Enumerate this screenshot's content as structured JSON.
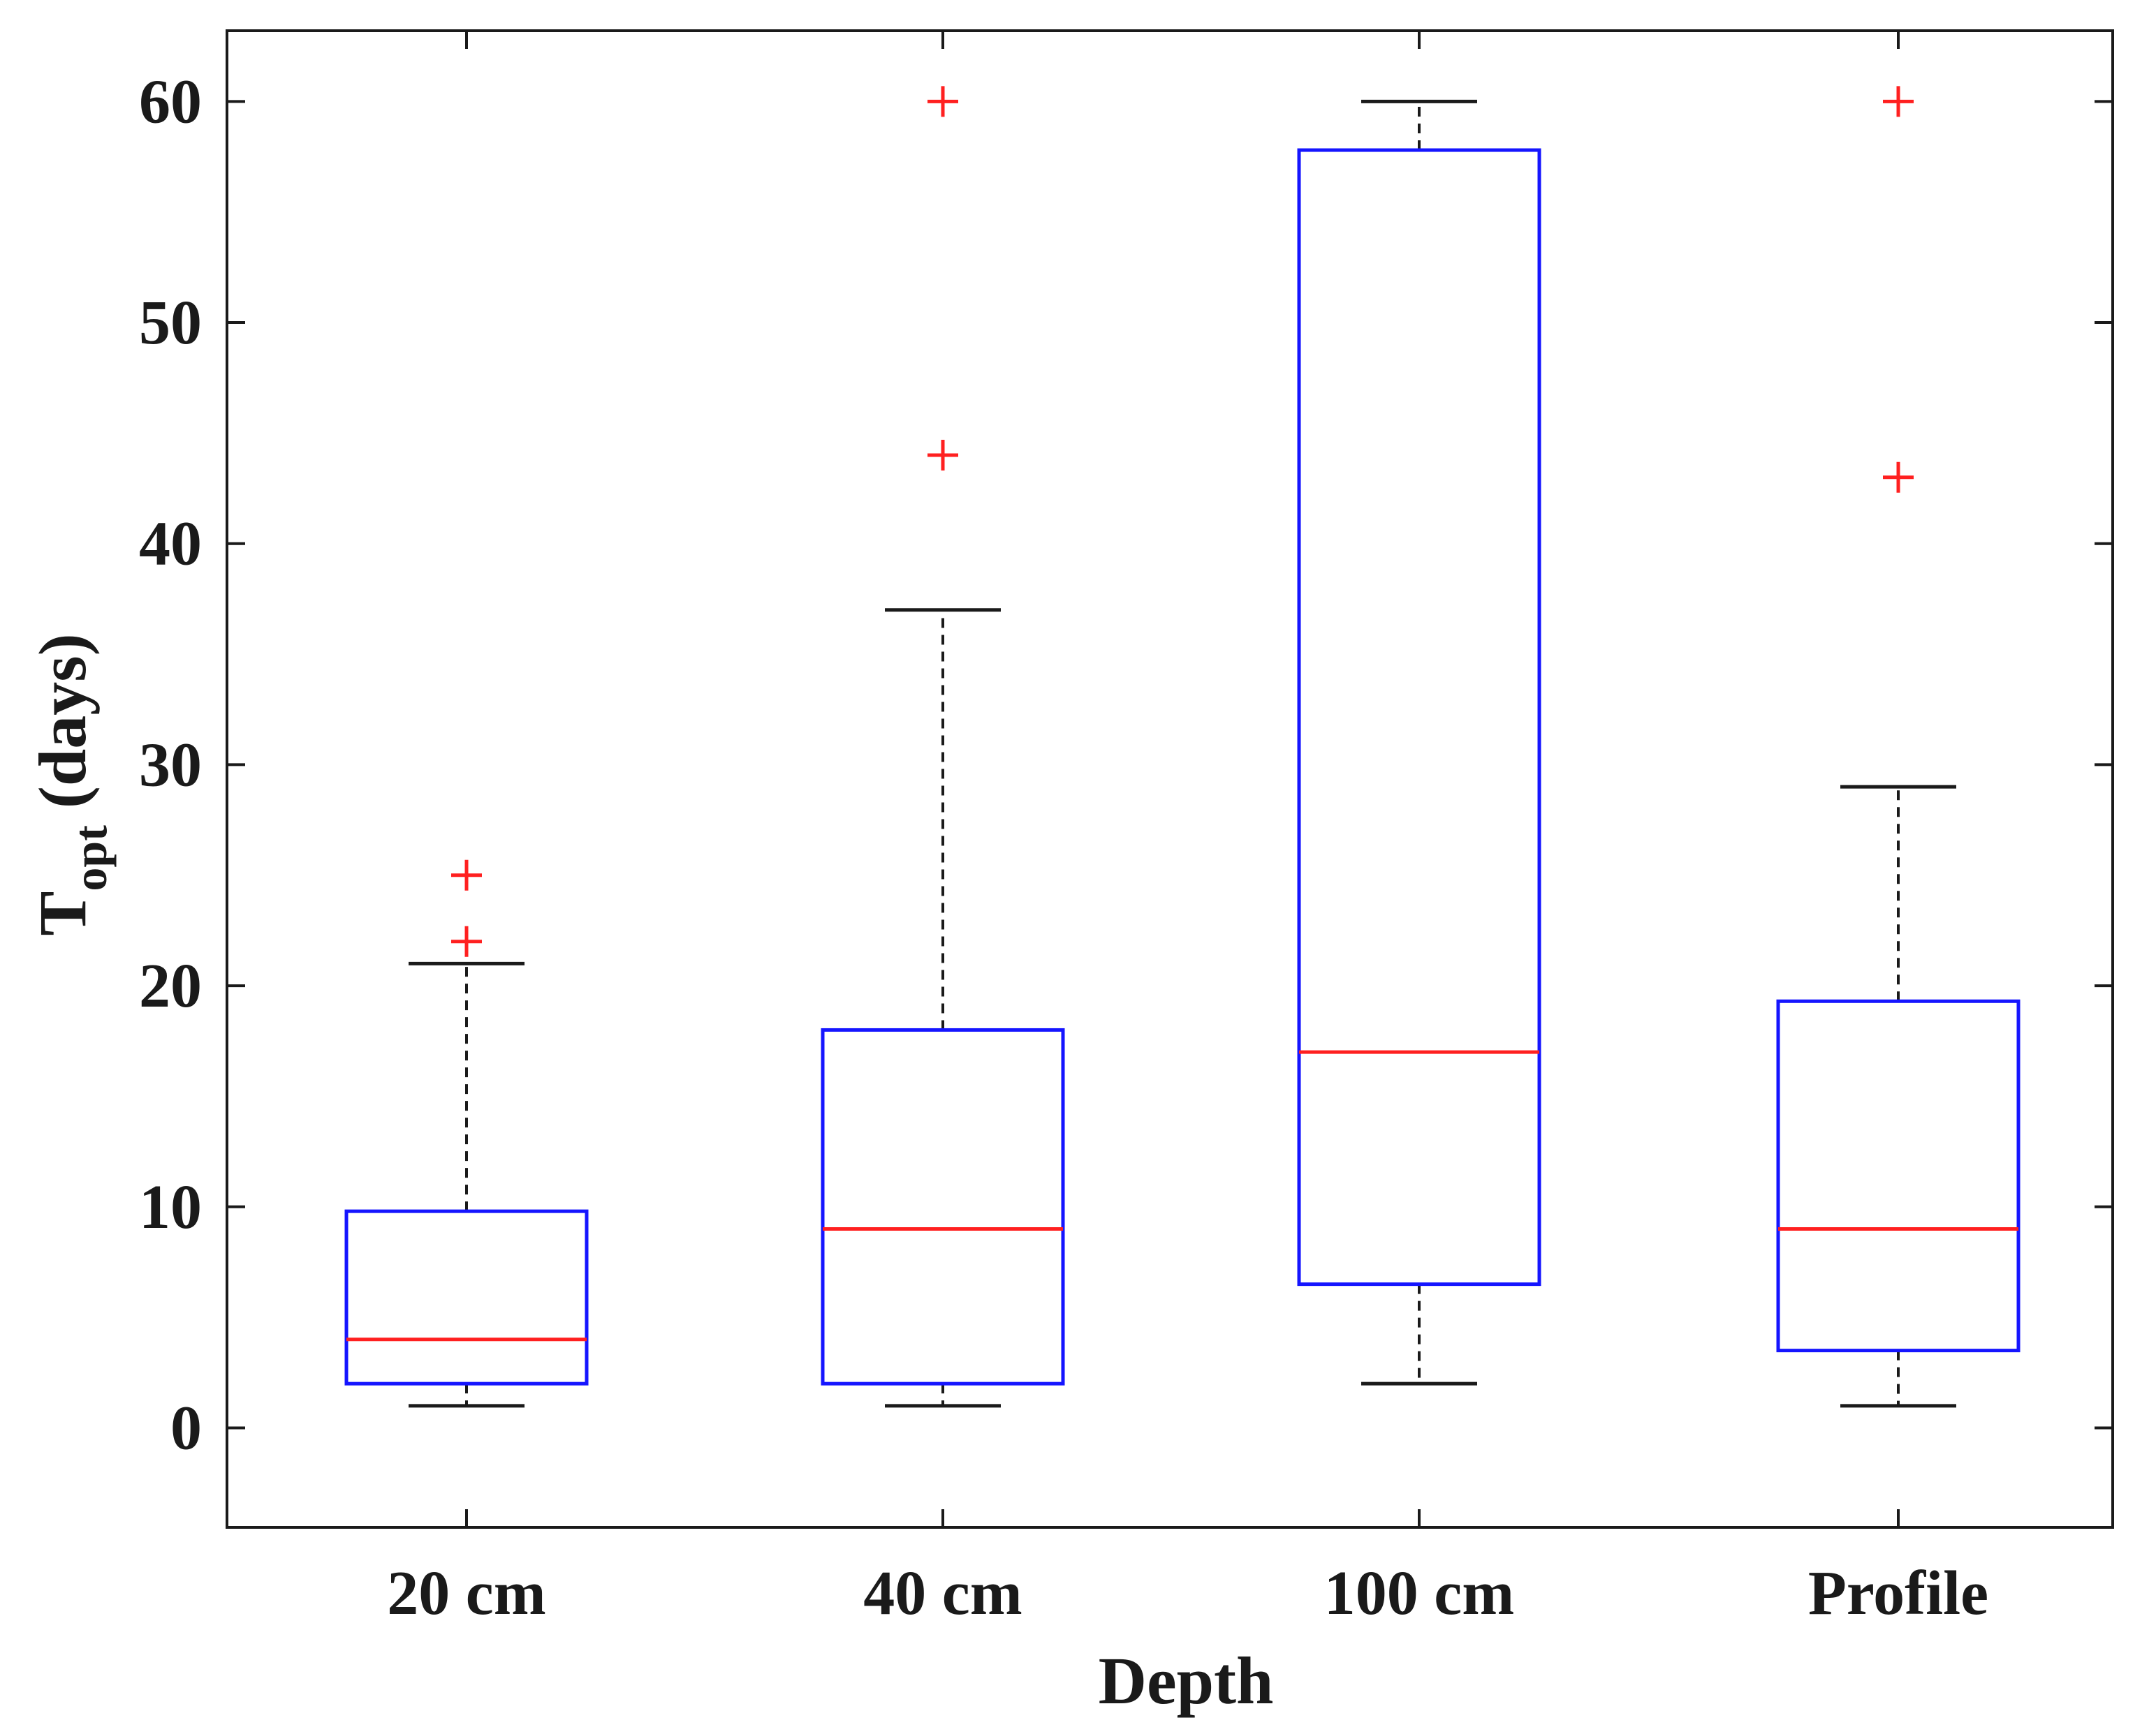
{
  "chart_data": {
    "type": "box",
    "xlabel": "Depth",
    "ylabel": {
      "main": "T",
      "sub": "opt",
      "rest": " (days)"
    },
    "categories": [
      "20 cm",
      "40 cm",
      "100 cm",
      "Profile"
    ],
    "ylim": [
      -4.5,
      63.2
    ],
    "yticks": [
      0,
      10,
      20,
      30,
      40,
      50,
      60
    ],
    "grid": false,
    "boxes": [
      {
        "category": "20 cm",
        "whisker_low": 1,
        "q1": 2,
        "median": 4,
        "q3": 9.8,
        "whisker_high": 21,
        "outliers": [
          22,
          25
        ]
      },
      {
        "category": "40 cm",
        "whisker_low": 1,
        "q1": 2,
        "median": 9,
        "q3": 18,
        "whisker_high": 37,
        "outliers": [
          44,
          60
        ]
      },
      {
        "category": "100 cm",
        "whisker_low": 2,
        "q1": 6.5,
        "median": 17,
        "q3": 57.8,
        "whisker_high": 60,
        "outliers": []
      },
      {
        "category": "Profile",
        "whisker_low": 1,
        "q1": 3.5,
        "median": 9,
        "q3": 19.3,
        "whisker_high": 29,
        "outliers": [
          43,
          60
        ]
      }
    ],
    "colors": {
      "box": "#1515ff",
      "median": "#ff2020",
      "outlier": "#ff2020",
      "whisker": "#1a1a1a",
      "axes": "#1a1a1a"
    }
  }
}
